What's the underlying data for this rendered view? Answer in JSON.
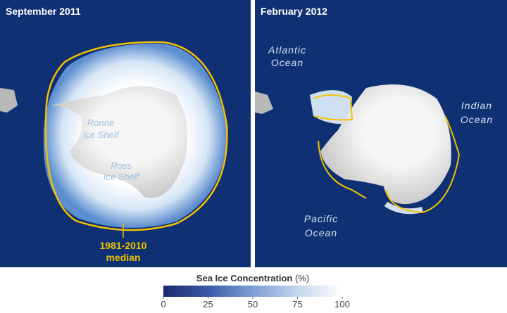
{
  "panels": [
    {
      "title": "September 2011",
      "labels": [
        [
          "Ronne",
          "Ice Shelf"
        ],
        [
          "Ross",
          "Ice Shelf"
        ]
      ],
      "median_label": [
        "1981-2010",
        "median"
      ]
    },
    {
      "title": "February 2012",
      "labels": [
        [
          "Atlantic",
          "Ocean"
        ],
        [
          "Indian",
          "Ocean"
        ],
        [
          "Pacific",
          "Ocean"
        ]
      ]
    }
  ],
  "colorbar": {
    "title": "Sea Ice Concentration",
    "unit": "(%)",
    "range": [
      0,
      100
    ],
    "ticks": [
      0,
      25,
      50,
      75,
      100
    ],
    "colors": [
      "#1b2a6b",
      "#3a5aa8",
      "#7d9fd2",
      "#c3d6ee",
      "#ffffff"
    ]
  }
}
